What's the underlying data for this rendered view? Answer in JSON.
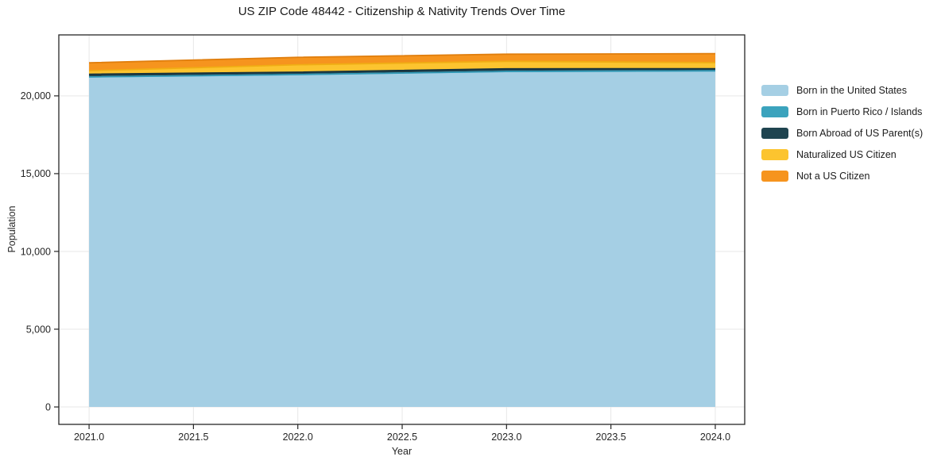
{
  "title": "US ZIP Code 48442 - Citizenship & Nativity Trends Over Time",
  "chart_data": {
    "type": "area",
    "stacked": true,
    "title": "US ZIP Code 48442 - Citizenship & Nativity Trends Over Time",
    "xlabel": "Year",
    "ylabel": "Population",
    "x": [
      2021,
      2022,
      2023,
      2024
    ],
    "series": [
      {
        "name": "Born in the United States",
        "color": "#a5cfe4",
        "line_color": "#7ab8d9",
        "values": [
          21220,
          21370,
          21570,
          21610
        ]
      },
      {
        "name": "Born in Puerto Rico / Islands",
        "color": "#3ba3bd",
        "line_color": "#2f98b4",
        "values": [
          0,
          0,
          0,
          0
        ]
      },
      {
        "name": "Born Abroad of US Parent(s)",
        "color": "#1f4450",
        "line_color": "#17323c",
        "values": [
          170,
          155,
          170,
          135
        ]
      },
      {
        "name": "Naturalized US Citizen",
        "color": "#fcc42f",
        "line_color": "#f0ad14",
        "values": [
          225,
          475,
          480,
          395
        ]
      },
      {
        "name": "Not a US Citizen",
        "color": "#f6941e",
        "line_color": "#e07e0d",
        "values": [
          510,
          480,
          460,
          575
        ]
      }
    ],
    "totals": [
      22125,
      22480,
      22680,
      22715
    ],
    "x_ticks": [
      "2021.0",
      "2021.5",
      "2022.0",
      "2022.5",
      "2023.0",
      "2023.5",
      "2024.0"
    ],
    "x_tick_values": [
      2021,
      2021.5,
      2022,
      2022.5,
      2023,
      2023.5,
      2024
    ],
    "y_ticks": [
      "0",
      "5,000",
      "10,000",
      "15,000",
      "20,000"
    ],
    "y_tick_values": [
      0,
      5000,
      10000,
      15000,
      20000
    ],
    "xlim": [
      2020.855,
      2024.141
    ],
    "ylim": [
      -1120,
      23920
    ],
    "grid": true,
    "grid_color": "#e7e7e7",
    "frame_color": "#262626",
    "tick_label_color": "#262626",
    "legend_position": "right"
  }
}
